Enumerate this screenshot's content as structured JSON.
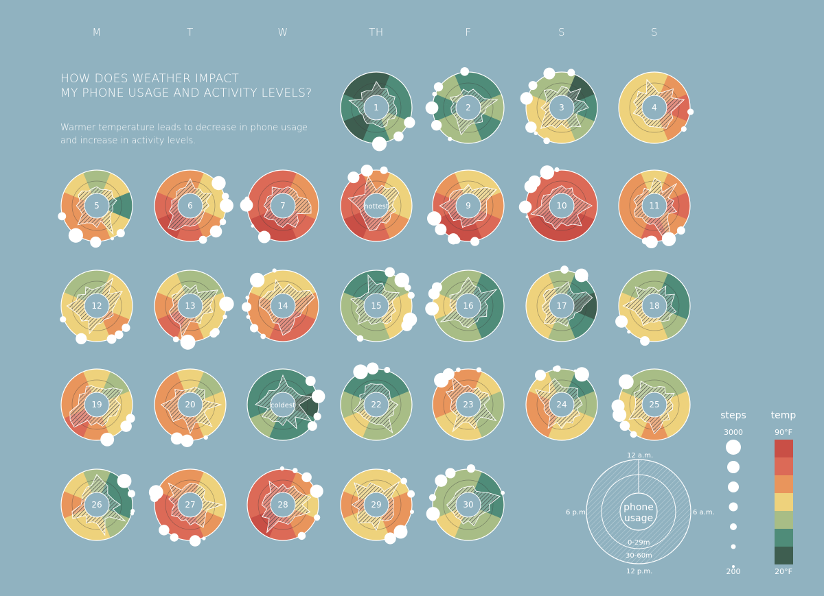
{
  "weekdays": [
    "M",
    "T",
    "W",
    "TH",
    "F",
    "S",
    "S"
  ],
  "title_lines": [
    "HOW DOES WEATHER IMPACT",
    "MY PHONE USAGE AND ACTIVITY LEVELS?"
  ],
  "subtitle_lines": [
    "Warmer temperature leads to decrease in phone usage",
    "and increase in activity levels."
  ],
  "colors": {
    "background": "#90b2c0",
    "temp_scale": [
      "#c94f46",
      "#dc6a57",
      "#e9955c",
      "#eed27c",
      "#a8bd86",
      "#4f8c79",
      "#3e5e50"
    ]
  },
  "days": [
    {
      "label": "1",
      "col": 3,
      "row": 0,
      "palette": [
        6,
        5,
        5,
        4,
        5,
        6,
        5,
        6
      ]
    },
    {
      "label": "2",
      "col": 4,
      "row": 0,
      "palette": [
        5,
        5,
        4,
        5,
        4,
        4,
        5,
        4
      ]
    },
    {
      "label": "3",
      "col": 5,
      "row": 0,
      "palette": [
        4,
        6,
        5,
        4,
        3,
        3,
        3,
        4
      ]
    },
    {
      "label": "4",
      "col": 6,
      "row": 0,
      "palette": [
        3,
        2,
        1,
        2,
        3,
        3,
        3,
        3
      ]
    },
    {
      "label": "5",
      "col": 0,
      "row": 1,
      "palette": [
        4,
        3,
        5,
        3,
        2,
        2,
        2,
        3
      ]
    },
    {
      "label": "6",
      "col": 1,
      "row": 1,
      "palette": [
        2,
        3,
        3,
        2,
        1,
        0,
        1,
        2
      ]
    },
    {
      "label": "7",
      "col": 2,
      "row": 1,
      "palette": [
        1,
        2,
        2,
        1,
        0,
        0,
        1,
        1
      ]
    },
    {
      "label": "hottest",
      "col": 3,
      "row": 1,
      "palette": [
        2,
        3,
        3,
        2,
        1,
        0,
        1,
        1
      ]
    },
    {
      "label": "9",
      "col": 4,
      "row": 1,
      "palette": [
        3,
        3,
        2,
        1,
        0,
        0,
        1,
        2
      ]
    },
    {
      "label": "10",
      "col": 5,
      "row": 1,
      "palette": [
        1,
        1,
        1,
        0,
        0,
        0,
        1,
        1
      ]
    },
    {
      "label": "11",
      "col": 6,
      "row": 1,
      "palette": [
        3,
        2,
        1,
        2,
        1,
        2,
        2,
        2
      ]
    },
    {
      "label": "12",
      "col": 0,
      "row": 2,
      "palette": [
        4,
        3,
        3,
        2,
        3,
        3,
        3,
        4
      ]
    },
    {
      "label": "13",
      "col": 1,
      "row": 2,
      "palette": [
        4,
        4,
        3,
        3,
        2,
        1,
        2,
        3
      ]
    },
    {
      "label": "14",
      "col": 2,
      "row": 2,
      "palette": [
        3,
        3,
        2,
        1,
        1,
        2,
        2,
        3
      ]
    },
    {
      "label": "15",
      "col": 3,
      "row": 2,
      "palette": [
        5,
        4,
        3,
        3,
        4,
        4,
        4,
        5
      ]
    },
    {
      "label": "16",
      "col": 4,
      "row": 2,
      "palette": [
        4,
        5,
        5,
        5,
        4,
        4,
        3,
        4
      ]
    },
    {
      "label": "17",
      "col": 5,
      "row": 2,
      "palette": [
        4,
        5,
        6,
        5,
        4,
        3,
        3,
        3
      ]
    },
    {
      "label": "18",
      "col": 6,
      "row": 2,
      "palette": [
        4,
        5,
        5,
        4,
        3,
        3,
        3,
        4
      ]
    },
    {
      "label": "19",
      "col": 0,
      "row": 3,
      "palette": [
        3,
        4,
        3,
        3,
        2,
        1,
        2,
        2
      ]
    },
    {
      "label": "20",
      "col": 1,
      "row": 3,
      "palette": [
        3,
        4,
        3,
        3,
        2,
        2,
        2,
        2
      ]
    },
    {
      "label": "coldest",
      "col": 2,
      "row": 3,
      "palette": [
        5,
        5,
        6,
        5,
        5,
        4,
        5,
        5
      ]
    },
    {
      "label": "22",
      "col": 3,
      "row": 3,
      "palette": [
        5,
        5,
        4,
        4,
        4,
        3,
        4,
        5
      ]
    },
    {
      "label": "23",
      "col": 4,
      "row": 3,
      "palette": [
        2,
        3,
        4,
        4,
        3,
        3,
        2,
        2
      ]
    },
    {
      "label": "24",
      "col": 5,
      "row": 3,
      "palette": [
        4,
        5,
        4,
        3,
        3,
        2,
        2,
        3
      ]
    },
    {
      "label": "25",
      "col": 6,
      "row": 3,
      "palette": [
        4,
        4,
        3,
        3,
        2,
        3,
        3,
        4
      ]
    },
    {
      "label": "26",
      "col": 0,
      "row": 4,
      "palette": [
        4,
        5,
        5,
        4,
        3,
        3,
        2,
        3
      ]
    },
    {
      "label": "27",
      "col": 1,
      "row": 4,
      "palette": [
        2,
        3,
        3,
        2,
        1,
        1,
        1,
        2
      ]
    },
    {
      "label": "28",
      "col": 2,
      "row": 4,
      "palette": [
        1,
        2,
        3,
        2,
        1,
        0,
        1,
        1
      ]
    },
    {
      "label": "29",
      "col": 3,
      "row": 4,
      "palette": [
        3,
        3,
        2,
        2,
        3,
        3,
        2,
        3
      ]
    },
    {
      "label": "30",
      "col": 4,
      "row": 4,
      "palette": [
        4,
        5,
        5,
        4,
        4,
        3,
        4,
        4
      ]
    }
  ],
  "legend": {
    "steps_title": "steps",
    "steps_max": "3000",
    "steps_min": "200",
    "temp_title": "temp",
    "temp_max": "90°F",
    "temp_min": "20°F",
    "example": {
      "center_line1": "phone",
      "center_line2": "usage",
      "top": "12 a.m.",
      "right": "6 a.m.",
      "bottom": "12 p.m.",
      "left": "6 p.m.",
      "inner_ring": "0-29m",
      "outer_ring": "30-60m"
    }
  }
}
